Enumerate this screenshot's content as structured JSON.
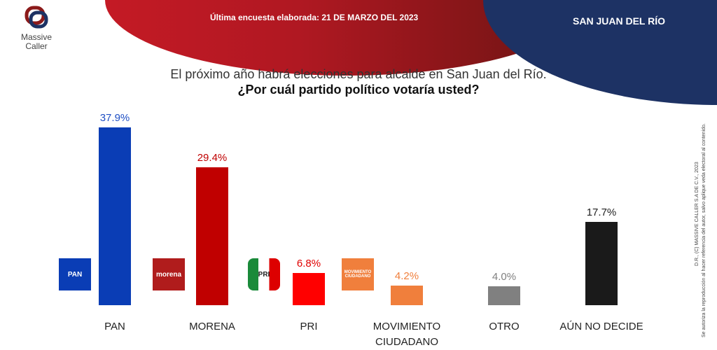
{
  "header": {
    "survey_label": "Última encuesta elaborada:  21 DE MARZO DEL 2023",
    "location": "SAN JUAN DEL RÍO",
    "brand_line1": "Massive",
    "brand_line2": "Caller"
  },
  "legal": {
    "line1": "D.R., (C) MASSIVE CALLER S.A DE C.V., 2023",
    "line2": "Se autoriza la reproducción al hacer referencia del autor, salvo aplique veda electoral al contenido."
  },
  "chart_data": {
    "type": "bar",
    "title": "El próximo año habrá elecciones para alcalde en San Juan del Río.",
    "subtitle": "¿Por cuál partido político votaría usted?",
    "categories": [
      "PAN",
      "MORENA",
      "PRI",
      "MOVIMIENTO CIUDADANO",
      "OTRO",
      "AÚN NO DECIDE"
    ],
    "values": [
      37.9,
      29.4,
      6.8,
      4.2,
      4.0,
      17.7
    ],
    "labels": [
      "37.9%",
      "29.4%",
      "6.8%",
      "4.2%",
      "4.0%",
      "17.7%"
    ],
    "colors": [
      "#0a3db5",
      "#c00000",
      "#ff0000",
      "#f07f3c",
      "#808080",
      "#1a1a1a"
    ],
    "label_colors": [
      "#1f4fc4",
      "#c00000",
      "#e00000",
      "#f07f3c",
      "#808080",
      "#222222"
    ],
    "logos": [
      "PAN",
      "morena",
      "PRI",
      "MOVIMIENTO CIUDADANO"
    ],
    "ylim": [
      0,
      40
    ],
    "grid": false
  }
}
